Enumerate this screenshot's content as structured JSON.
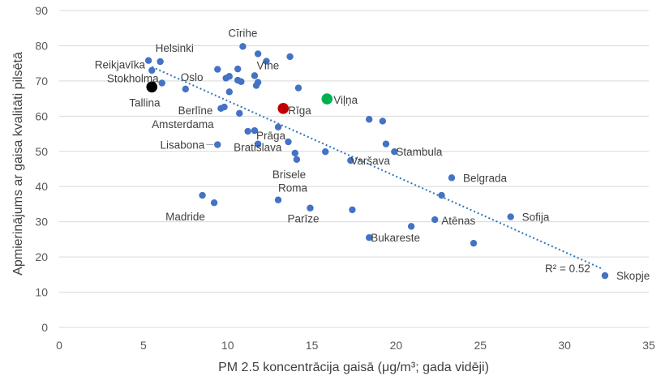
{
  "chart_data": {
    "type": "scatter",
    "xlabel": "PM 2.5 koncentrācija gaisā (μg/m³; gada vidēji)",
    "ylabel": "Apmierinājums ar gaisa kvalitāti pilsētā",
    "xlim": [
      0,
      35
    ],
    "ylim": [
      0,
      90
    ],
    "x_ticks": [
      0,
      5,
      10,
      15,
      20,
      25,
      30,
      35
    ],
    "y_ticks": [
      0,
      10,
      20,
      30,
      40,
      50,
      60,
      70,
      80,
      90
    ],
    "grid": "horizontal",
    "colors": {
      "default": "#4472c4",
      "highlight_black": "#000000",
      "highlight_red": "#c00000",
      "highlight_green": "#00b050",
      "trend": "#2e75b6"
    },
    "trendline": {
      "type": "linear",
      "from": [
        5.5,
        74
      ],
      "to": [
        32.3,
        16.5
      ],
      "r2_label": "R² = 0.52"
    },
    "points": [
      {
        "x": 5.5,
        "y": 68.3,
        "label": "Tallina",
        "color": "#000000",
        "big": true
      },
      {
        "x": 13.3,
        "y": 62.2,
        "label": "Rīga",
        "color": "#c00000",
        "big": true
      },
      {
        "x": 15.9,
        "y": 64.9,
        "label": "Viļņa",
        "color": "#00b050",
        "big": true
      },
      {
        "x": 5.3,
        "y": 75.8,
        "label": "Reikjavīka"
      },
      {
        "x": 6.0,
        "y": 75.5,
        "label": "Helsinki"
      },
      {
        "x": 5.5,
        "y": 73.0,
        "label": ""
      },
      {
        "x": 6.1,
        "y": 69.4,
        "label": "Stokholma"
      },
      {
        "x": 7.5,
        "y": 67.7,
        "label": "Oslo"
      },
      {
        "x": 9.6,
        "y": 62.2,
        "label": "Berlīne"
      },
      {
        "x": 9.8,
        "y": 62.6,
        "label": ""
      },
      {
        "x": 9.4,
        "y": 73.3,
        "label": ""
      },
      {
        "x": 9.9,
        "y": 70.8,
        "label": ""
      },
      {
        "x": 10.1,
        "y": 71.3,
        "label": ""
      },
      {
        "x": 10.1,
        "y": 66.9,
        "label": ""
      },
      {
        "x": 10.6,
        "y": 73.4,
        "label": ""
      },
      {
        "x": 10.6,
        "y": 70.2,
        "label": ""
      },
      {
        "x": 10.8,
        "y": 69.8,
        "label": ""
      },
      {
        "x": 10.7,
        "y": 60.8,
        "label": ""
      },
      {
        "x": 10.9,
        "y": 79.8,
        "label": "Cīrihe"
      },
      {
        "x": 11.8,
        "y": 77.7,
        "label": ""
      },
      {
        "x": 12.3,
        "y": 75.6,
        "label": "Vīne"
      },
      {
        "x": 11.6,
        "y": 71.5,
        "label": ""
      },
      {
        "x": 11.7,
        "y": 68.7,
        "label": ""
      },
      {
        "x": 11.8,
        "y": 69.6,
        "label": ""
      },
      {
        "x": 13.7,
        "y": 76.9,
        "label": ""
      },
      {
        "x": 14.2,
        "y": 68.0,
        "label": ""
      },
      {
        "x": 11.2,
        "y": 55.7,
        "label": "Amsterdama"
      },
      {
        "x": 11.6,
        "y": 55.9,
        "label": "Prāga"
      },
      {
        "x": 13.0,
        "y": 56.9,
        "label": ""
      },
      {
        "x": 11.8,
        "y": 52.1,
        "label": "Bratislava"
      },
      {
        "x": 13.6,
        "y": 52.7,
        "label": ""
      },
      {
        "x": 9.4,
        "y": 51.9,
        "label": "Lisabona"
      },
      {
        "x": 14.0,
        "y": 49.5,
        "label": ""
      },
      {
        "x": 14.1,
        "y": 47.7,
        "label": "Brisele"
      },
      {
        "x": 15.8,
        "y": 49.9,
        "label": ""
      },
      {
        "x": 17.3,
        "y": 47.4,
        "label": "Varšava"
      },
      {
        "x": 18.4,
        "y": 59.1,
        "label": ""
      },
      {
        "x": 19.2,
        "y": 58.6,
        "label": ""
      },
      {
        "x": 19.4,
        "y": 52.1,
        "label": ""
      },
      {
        "x": 19.9,
        "y": 49.9,
        "label": "Stambula"
      },
      {
        "x": 23.3,
        "y": 42.5,
        "label": "Belgrada"
      },
      {
        "x": 22.7,
        "y": 37.5,
        "label": ""
      },
      {
        "x": 8.5,
        "y": 37.5,
        "label": ""
      },
      {
        "x": 9.2,
        "y": 35.4,
        "label": "Madride"
      },
      {
        "x": 13.0,
        "y": 36.2,
        "label": "Roma"
      },
      {
        "x": 14.9,
        "y": 33.9,
        "label": "Parīze"
      },
      {
        "x": 17.4,
        "y": 33.4,
        "label": ""
      },
      {
        "x": 22.3,
        "y": 30.6,
        "label": "Atēnas"
      },
      {
        "x": 20.9,
        "y": 28.7,
        "label": ""
      },
      {
        "x": 26.8,
        "y": 31.4,
        "label": "Sofija"
      },
      {
        "x": 18.4,
        "y": 25.5,
        "label": "Bukareste"
      },
      {
        "x": 24.6,
        "y": 23.9,
        "label": ""
      },
      {
        "x": 32.4,
        "y": 14.7,
        "label": "Skopje"
      }
    ]
  }
}
